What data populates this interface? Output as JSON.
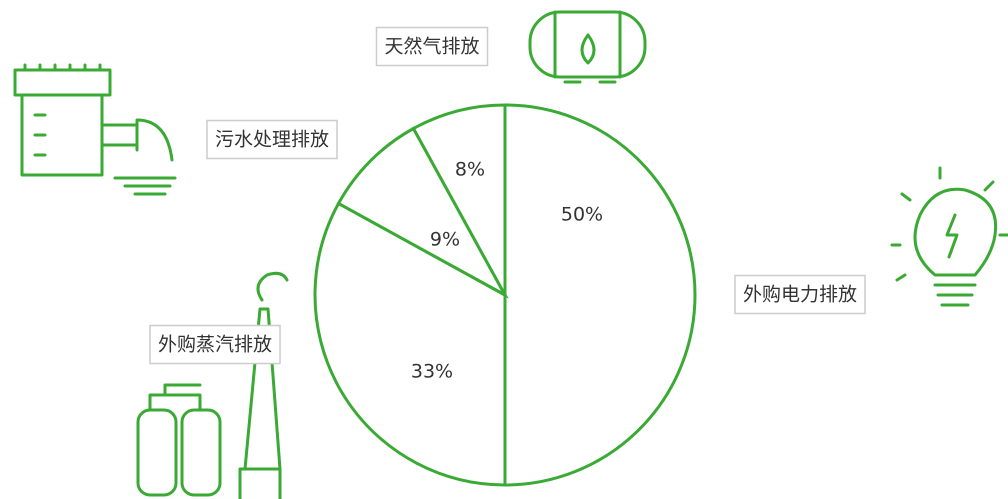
{
  "chart_data": {
    "type": "pie",
    "categories": [
      "外购电力排放",
      "外购蒸汽排放",
      "污水处理排放",
      "天然气排放"
    ],
    "values": [
      50,
      33,
      9,
      8
    ],
    "value_labels": [
      "50%",
      "33%",
      "9%",
      "8%"
    ],
    "color": "#3aaa35"
  }
}
